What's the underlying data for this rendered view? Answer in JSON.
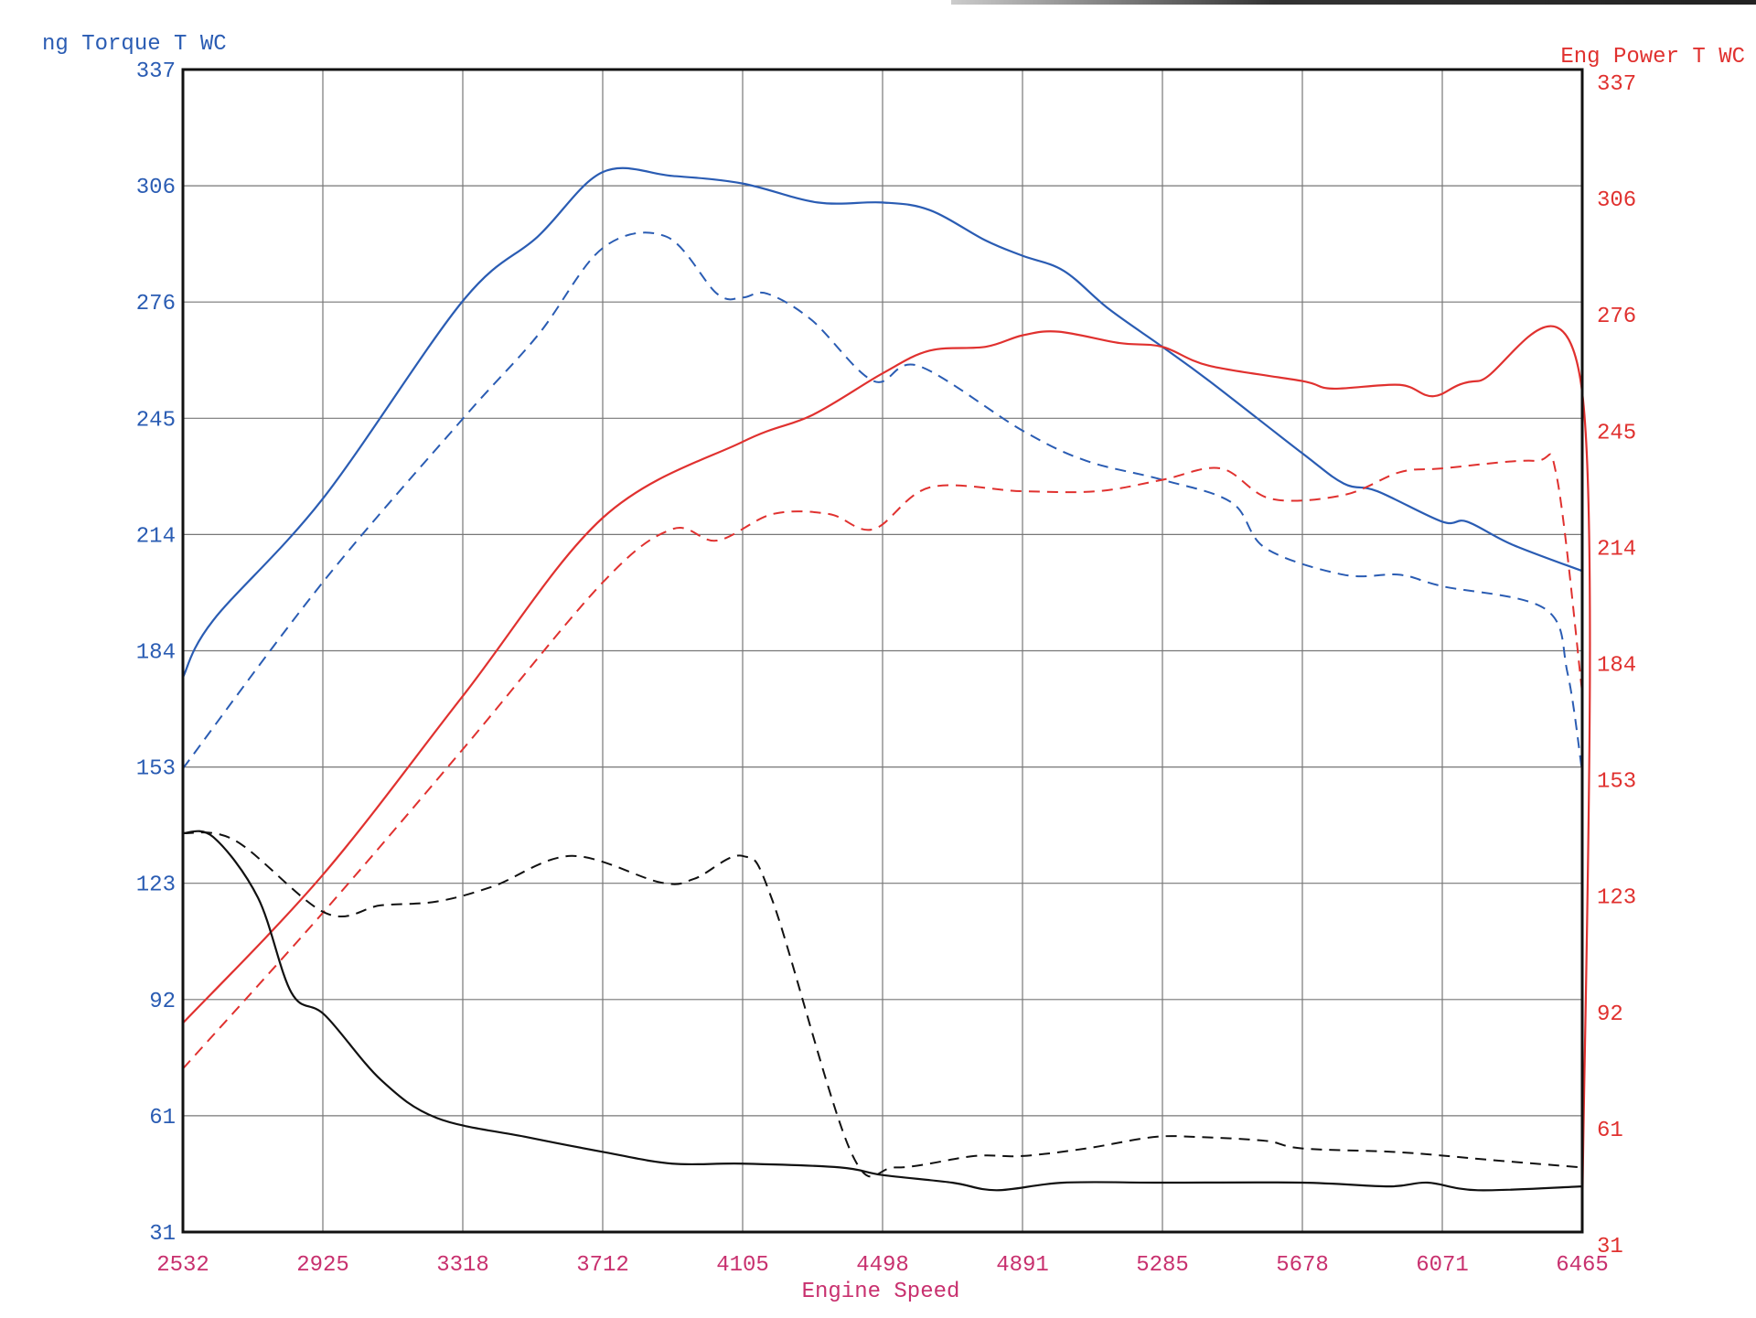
{
  "chart_data": {
    "type": "line",
    "left_axis_title": "ng Torque T WC",
    "right_axis_title": "Eng Power T WC",
    "xlabel": "Engine Speed",
    "xlim": [
      2532,
      6465
    ],
    "ylim": [
      31,
      337
    ],
    "y2lim": [
      31,
      337
    ],
    "grid": true,
    "x_ticks": [
      "2532",
      "2925",
      "3318",
      "3712",
      "4105",
      "4498",
      "4891",
      "5285",
      "5678",
      "6071",
      "6465"
    ],
    "y_ticks": [
      "31",
      "61",
      "92",
      "123",
      "153",
      "184",
      "214",
      "245",
      "276",
      "306",
      "337"
    ],
    "y2_ticks": [
      "31",
      "61",
      "92",
      "123",
      "153",
      "184",
      "214",
      "245",
      "276",
      "306",
      "337"
    ],
    "colors": {
      "torque": "#2a5cb3",
      "power": "#e0312f",
      "black": "#111111",
      "x_ticks": "#c8306e"
    },
    "series": [
      {
        "axis": "left",
        "color": "#2a5cb3",
        "style": "solid",
        "points": [
          [
            2532,
            177
          ],
          [
            2617,
            192
          ],
          [
            2925,
            224
          ],
          [
            3318,
            276
          ],
          [
            3529,
            293
          ],
          [
            3712,
            310
          ],
          [
            3907,
            309
          ],
          [
            4105,
            307
          ],
          [
            4316,
            302
          ],
          [
            4498,
            302
          ],
          [
            4631,
            300
          ],
          [
            4788,
            292
          ],
          [
            4891,
            288
          ],
          [
            5008,
            284
          ],
          [
            5134,
            274
          ],
          [
            5285,
            264
          ],
          [
            5417,
            255
          ],
          [
            5678,
            236
          ],
          [
            5795,
            228
          ],
          [
            5889,
            226
          ],
          [
            6071,
            218
          ],
          [
            6141,
            218
          ],
          [
            6267,
            212
          ],
          [
            6465,
            205
          ]
        ]
      },
      {
        "axis": "left",
        "color": "#2a5cb3",
        "style": "dashed",
        "points": [
          [
            2532,
            153
          ],
          [
            2925,
            202
          ],
          [
            3318,
            245
          ],
          [
            3529,
            267
          ],
          [
            3712,
            290
          ],
          [
            3891,
            293
          ],
          [
            4033,
            278
          ],
          [
            4105,
            277
          ],
          [
            4174,
            278
          ],
          [
            4300,
            271
          ],
          [
            4473,
            255
          ],
          [
            4599,
            259
          ],
          [
            4891,
            242
          ],
          [
            5071,
            234
          ],
          [
            5285,
            229
          ],
          [
            5480,
            223
          ],
          [
            5575,
            211
          ],
          [
            5795,
            204
          ],
          [
            5952,
            204
          ],
          [
            6071,
            201
          ],
          [
            6361,
            195
          ],
          [
            6424,
            178
          ],
          [
            6465,
            152
          ]
        ]
      },
      {
        "axis": "right",
        "color": "#e0312f",
        "style": "solid",
        "points": [
          [
            2532,
            86
          ],
          [
            2925,
            125
          ],
          [
            3318,
            172
          ],
          [
            3712,
            219
          ],
          [
            4105,
            239
          ],
          [
            4300,
            246
          ],
          [
            4498,
            257
          ],
          [
            4631,
            263
          ],
          [
            4788,
            264
          ],
          [
            4891,
            267
          ],
          [
            4993,
            268
          ],
          [
            5165,
            265
          ],
          [
            5285,
            264
          ],
          [
            5417,
            259
          ],
          [
            5678,
            255
          ],
          [
            5763,
            253
          ],
          [
            5952,
            254
          ],
          [
            6047,
            251
          ],
          [
            6172,
            255
          ],
          [
            6465,
            252
          ],
          [
            6465,
            31
          ]
        ]
      },
      {
        "axis": "right",
        "color": "#e0312f",
        "style": "dashed",
        "points": [
          [
            2532,
            74
          ],
          [
            2925,
            115
          ],
          [
            3318,
            158
          ],
          [
            3712,
            202
          ],
          [
            3907,
            216
          ],
          [
            4033,
            213
          ],
          [
            4190,
            220
          ],
          [
            4348,
            220
          ],
          [
            4473,
            216
          ],
          [
            4631,
            227
          ],
          [
            4891,
            226
          ],
          [
            5103,
            226
          ],
          [
            5285,
            229
          ],
          [
            5449,
            232
          ],
          [
            5590,
            224
          ],
          [
            5795,
            225
          ],
          [
            5952,
            231
          ],
          [
            6071,
            232
          ],
          [
            6330,
            234
          ],
          [
            6393,
            230
          ],
          [
            6465,
            173
          ]
        ]
      },
      {
        "axis": "left",
        "color": "#111111",
        "style": "solid",
        "points": [
          [
            2532,
            136
          ],
          [
            2617,
            135
          ],
          [
            2743,
            119
          ],
          [
            2837,
            94
          ],
          [
            2932,
            88
          ],
          [
            3089,
            71
          ],
          [
            3246,
            61
          ],
          [
            3498,
            56
          ],
          [
            3718,
            52
          ],
          [
            3907,
            49
          ],
          [
            4105,
            49
          ],
          [
            4379,
            48
          ],
          [
            4498,
            46
          ],
          [
            4694,
            44
          ],
          [
            4819,
            42
          ],
          [
            5008,
            44
          ],
          [
            5285,
            44
          ],
          [
            5678,
            44
          ],
          [
            5921,
            43
          ],
          [
            6031,
            44
          ],
          [
            6172,
            42
          ],
          [
            6465,
            43
          ]
        ]
      },
      {
        "axis": "left",
        "color": "#111111",
        "style": "dashed",
        "points": [
          [
            2532,
            136
          ],
          [
            2680,
            134
          ],
          [
            2932,
            115
          ],
          [
            3089,
            117
          ],
          [
            3246,
            118
          ],
          [
            3404,
            122
          ],
          [
            3624,
            130
          ],
          [
            3875,
            123
          ],
          [
            3970,
            124
          ],
          [
            4105,
            130
          ],
          [
            4190,
            118
          ],
          [
            4410,
            52
          ],
          [
            4536,
            48
          ],
          [
            4756,
            51
          ],
          [
            4891,
            51
          ],
          [
            5071,
            53
          ],
          [
            5260,
            56
          ],
          [
            5386,
            56
          ],
          [
            5575,
            55
          ],
          [
            5678,
            53
          ],
          [
            5952,
            52
          ],
          [
            6204,
            50
          ],
          [
            6465,
            48
          ]
        ]
      }
    ]
  }
}
